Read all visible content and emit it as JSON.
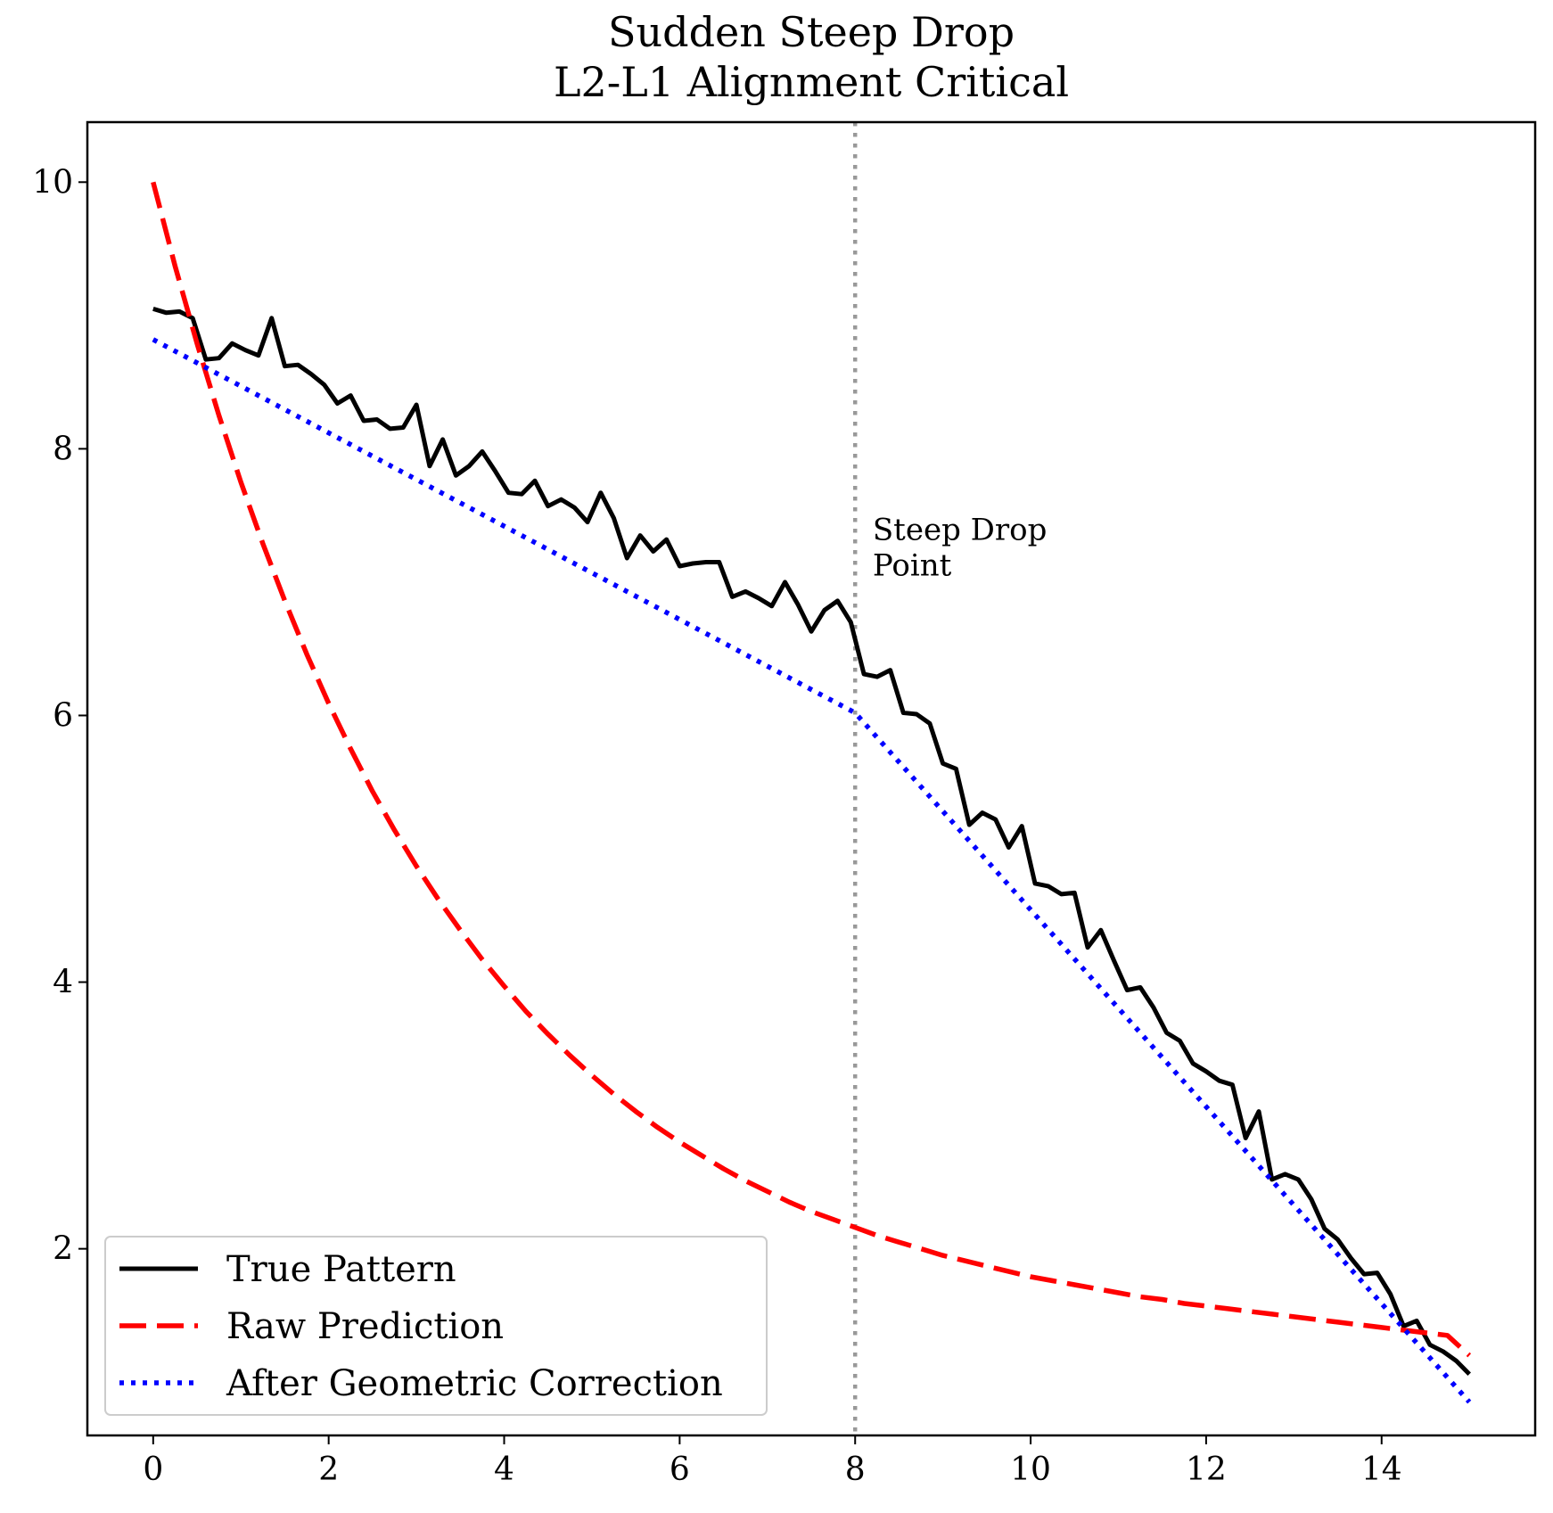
{
  "chart_data": {
    "type": "line",
    "title": "Sudden Steep Drop\nL2-L1 Alignment Critical",
    "title_lines": [
      "Sudden Steep Drop",
      "L2-L1 Alignment Critical"
    ],
    "xlabel": "",
    "ylabel": "",
    "xlim": [
      -0.75,
      15.75
    ],
    "ylim": [
      0.6,
      10.45
    ],
    "xticks": [
      0,
      2,
      4,
      6,
      8,
      10,
      12,
      14
    ],
    "yticks": [
      2,
      4,
      6,
      8,
      10
    ],
    "grid": false,
    "legend_position": "lower-left",
    "annotation": {
      "text_lines": [
        "Steep Drop",
        "Point"
      ],
      "x": 8.2,
      "y": 7.05
    },
    "vline": {
      "x": 8,
      "color": "#999999",
      "style": "dotted"
    },
    "series": [
      {
        "name": "True Pattern",
        "color": "#000000",
        "style": "solid",
        "x": [
          0,
          0.15,
          0.3,
          0.45,
          0.6,
          0.75,
          0.9,
          1.05,
          1.2,
          1.35,
          1.5,
          1.65,
          1.8,
          1.95,
          2.1,
          2.25,
          2.4,
          2.55,
          2.7,
          2.85,
          3.0,
          3.15,
          3.3,
          3.45,
          3.6,
          3.75,
          3.9,
          4.05,
          4.2,
          4.35,
          4.5,
          4.65,
          4.8,
          4.95,
          5.1,
          5.25,
          5.4,
          5.55,
          5.7,
          5.85,
          6.0,
          6.15,
          6.3,
          6.45,
          6.6,
          6.75,
          6.9,
          7.05,
          7.2,
          7.35,
          7.5,
          7.65,
          7.8,
          7.95,
          8.1,
          8.25,
          8.4,
          8.55,
          8.7,
          8.85,
          9.0,
          9.15,
          9.3,
          9.45,
          9.6,
          9.75,
          9.9,
          10.05,
          10.2,
          10.35,
          10.5,
          10.65,
          10.8,
          10.95,
          11.1,
          11.25,
          11.4,
          11.55,
          11.7,
          11.85,
          12.0,
          12.15,
          12.3,
          12.45,
          12.6,
          12.75,
          12.9,
          13.05,
          13.2,
          13.35,
          13.5,
          13.65,
          13.8,
          13.95,
          14.1,
          14.25,
          14.4,
          14.55,
          14.7,
          14.85,
          15.0
        ],
        "y": [
          9.05,
          9.02,
          9.03,
          8.98,
          8.67,
          8.68,
          8.79,
          8.74,
          8.7,
          8.98,
          8.62,
          8.63,
          8.56,
          8.48,
          8.34,
          8.4,
          8.21,
          8.22,
          8.15,
          8.16,
          8.33,
          7.87,
          8.07,
          7.8,
          7.87,
          7.98,
          7.83,
          7.67,
          7.66,
          7.76,
          7.57,
          7.62,
          7.56,
          7.45,
          7.67,
          7.48,
          7.18,
          7.35,
          7.23,
          7.32,
          7.12,
          7.14,
          7.15,
          7.15,
          6.89,
          6.93,
          6.88,
          6.82,
          7.0,
          6.83,
          6.63,
          6.79,
          6.86,
          6.7,
          6.31,
          6.29,
          6.34,
          6.02,
          6.01,
          5.94,
          5.64,
          5.6,
          5.18,
          5.27,
          5.22,
          5.01,
          5.17,
          4.74,
          4.72,
          4.66,
          4.67,
          4.26,
          4.39,
          4.16,
          3.94,
          3.96,
          3.81,
          3.62,
          3.56,
          3.39,
          3.33,
          3.26,
          3.23,
          2.83,
          3.03,
          2.52,
          2.56,
          2.52,
          2.37,
          2.15,
          2.07,
          1.93,
          1.81,
          1.82,
          1.66,
          1.42,
          1.46,
          1.28,
          1.23,
          1.16,
          1.06
        ]
      },
      {
        "name": "Raw Prediction",
        "color": "#ff0000",
        "style": "dashed",
        "x": [
          0,
          0.25,
          0.5,
          0.75,
          1.0,
          1.25,
          1.5,
          1.75,
          2.0,
          2.25,
          2.5,
          2.75,
          3.0,
          3.25,
          3.5,
          3.75,
          4.0,
          4.25,
          4.5,
          4.75,
          5.0,
          5.25,
          5.5,
          5.75,
          6.0,
          6.25,
          6.5,
          6.75,
          7.0,
          7.25,
          7.5,
          7.75,
          8.0,
          8.25,
          8.5,
          8.75,
          9.0,
          9.25,
          9.5,
          9.75,
          10.0,
          10.25,
          10.5,
          10.75,
          11.0,
          11.25,
          11.5,
          11.75,
          12.0,
          12.25,
          12.5,
          12.75,
          13.0,
          13.25,
          13.5,
          13.75,
          14.0,
          14.25,
          14.5,
          14.75,
          15.0
        ],
        "y": [
          10.0,
          9.37,
          8.79,
          8.25,
          7.75,
          7.29,
          6.86,
          6.46,
          6.09,
          5.75,
          5.43,
          5.14,
          4.87,
          4.62,
          4.39,
          4.17,
          3.97,
          3.78,
          3.61,
          3.45,
          3.3,
          3.16,
          3.03,
          2.91,
          2.8,
          2.7,
          2.6,
          2.51,
          2.43,
          2.35,
          2.28,
          2.22,
          2.16,
          2.1,
          2.05,
          2.0,
          1.95,
          1.91,
          1.87,
          1.83,
          1.79,
          1.76,
          1.73,
          1.7,
          1.67,
          1.64,
          1.62,
          1.59,
          1.57,
          1.55,
          1.53,
          1.51,
          1.49,
          1.47,
          1.45,
          1.43,
          1.41,
          1.39,
          1.37,
          1.35,
          1.2
        ]
      },
      {
        "name": "After Geometric Correction",
        "color": "#0000ff",
        "style": "dotted",
        "x": [
          0,
          8,
          15
        ],
        "y": [
          8.82,
          6.02,
          0.85
        ]
      }
    ]
  }
}
